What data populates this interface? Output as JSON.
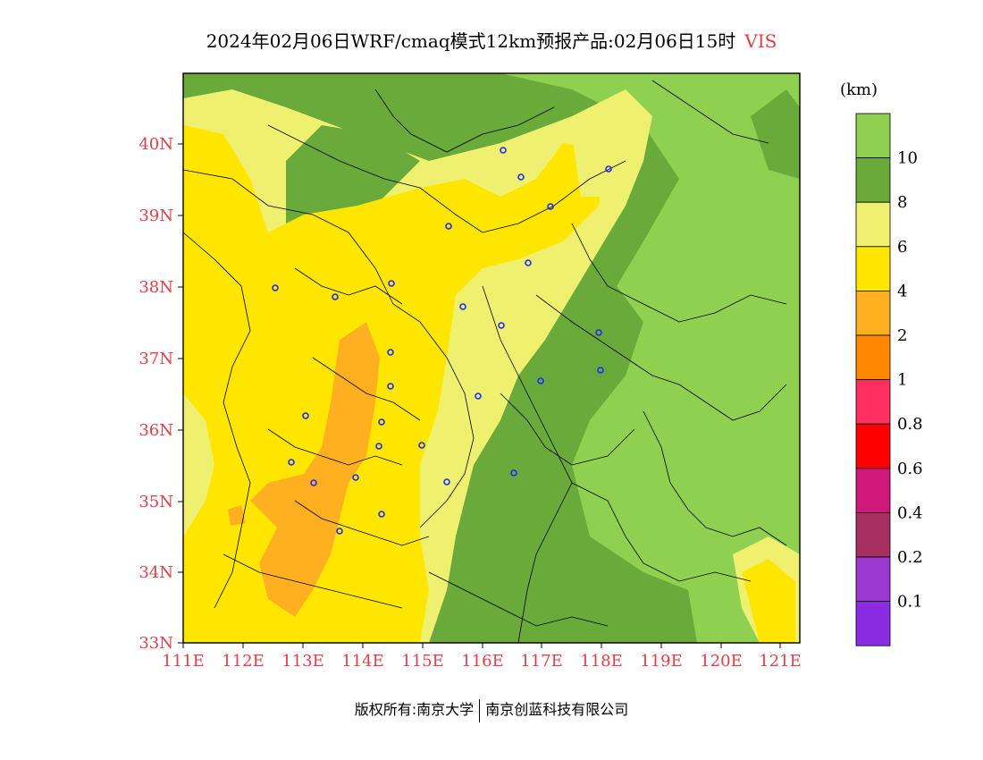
{
  "title": {
    "main": "2024年02月06日WRF/cmaq模式12km预报产品:02月06日15时",
    "variable": "VIS"
  },
  "axes": {
    "lat_labels": [
      "40N",
      "39N",
      "38N",
      "37N",
      "36N",
      "35N",
      "34N",
      "33N"
    ],
    "lon_labels": [
      "111E",
      "112E",
      "113E",
      "114E",
      "115E",
      "116E",
      "117E",
      "118E",
      "119E",
      "120E",
      "121E"
    ],
    "label_color": "#e0404a"
  },
  "legend": {
    "unit": "(km)",
    "labels": [
      "10",
      "8",
      "6",
      "4",
      "2",
      "1",
      "0.8",
      "0.6",
      "0.4",
      "0.2",
      "0.1"
    ],
    "colors": [
      "#90d050",
      "#6aaa3a",
      "#f0f070",
      "#ffe600",
      "#ffb020",
      "#ff8800",
      "#ff3060",
      "#ff0000",
      "#d0187a",
      "#a83060",
      "#9a38d0",
      "#8a2be2"
    ]
  },
  "footer": {
    "left": "版权所有:南京大学",
    "right": "南京创蓝科技有限公司"
  }
}
